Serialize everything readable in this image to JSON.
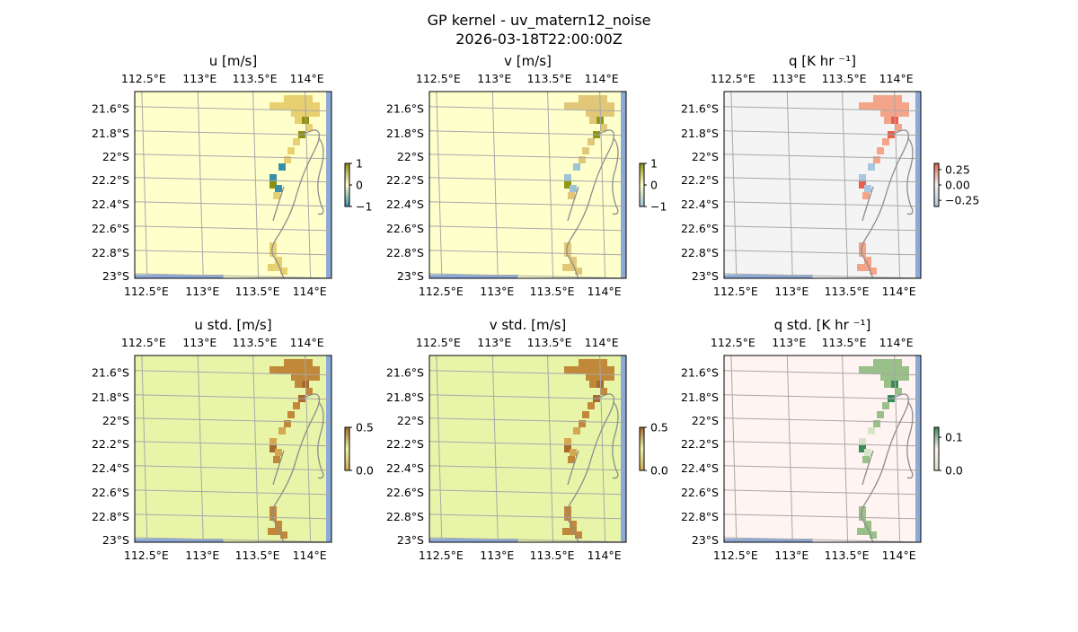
{
  "figure": {
    "title_line1": "GP kernel - uv_matern12_noise",
    "title_line2": "2026-03-18T22:00:00Z"
  },
  "chart_data": [
    {
      "type": "heatmap",
      "title": "u [m/s]",
      "lon_ticks": [
        "112.5°E",
        "113°E",
        "113.5°E",
        "114°E"
      ],
      "lat_ticks": [
        "21.6°S",
        "21.8°S",
        "22°S",
        "22.2°S",
        "22.4°S",
        "22.6°S",
        "22.8°S",
        "23°S"
      ],
      "colorbar": {
        "range": [
          -1,
          1
        ],
        "ticks": [
          "1",
          "0",
          "−1"
        ]
      },
      "background": "#ffffcc",
      "colors": {
        "low": "#3a8fa8",
        "high": "#8f8f10",
        "mid": "#e8d070"
      }
    },
    {
      "type": "heatmap",
      "title": "v [m/s]",
      "lon_ticks": [
        "112.5°E",
        "113°E",
        "113.5°E",
        "114°E"
      ],
      "lat_ticks": [
        "21.6°S",
        "21.8°S",
        "22°S",
        "22.2°S",
        "22.4°S",
        "22.6°S",
        "22.8°S",
        "23°S"
      ],
      "colorbar": {
        "range": [
          -1,
          1
        ],
        "ticks": [
          "1",
          "0",
          "−1"
        ]
      },
      "background": "#ffffcc",
      "colors": {
        "low": "#9cc4d4",
        "high": "#8f9810",
        "mid": "#e0c878"
      }
    },
    {
      "type": "heatmap",
      "title": "q [K hr ⁻¹]",
      "lon_ticks": [
        "112.5°E",
        "113°E",
        "113.5°E",
        "114°E"
      ],
      "lat_ticks": [
        "21.6°S",
        "21.8°S",
        "22°S",
        "22.2°S",
        "22.4°S",
        "22.6°S",
        "22.8°S",
        "23°S"
      ],
      "colorbar": {
        "range": [
          -0.35,
          0.35
        ],
        "ticks": [
          "0.25",
          "0.00",
          "−0.25"
        ]
      },
      "background": "#f4f4f4",
      "colors": {
        "low": "#a8c8e0",
        "high": "#e8604a",
        "mid": "#f4a488"
      }
    },
    {
      "type": "heatmap",
      "title": "u std. [m/s]",
      "lon_ticks": [
        "112.5°E",
        "113°E",
        "113.5°E",
        "114°E"
      ],
      "lat_ticks": [
        "21.6°S",
        "21.8°S",
        "22°S",
        "22.2°S",
        "22.4°S",
        "22.6°S",
        "22.8°S",
        "23°S"
      ],
      "colorbar": {
        "range": [
          0,
          0.5
        ],
        "ticks": [
          "0.5",
          "0.0"
        ]
      },
      "background": "#e8f5a8",
      "colors": {
        "low": "#d4a850",
        "high": "#a86a2a",
        "mid": "#c08838"
      }
    },
    {
      "type": "heatmap",
      "title": "v std. [m/s]",
      "lon_ticks": [
        "112.5°E",
        "113°E",
        "113.5°E",
        "114°E"
      ],
      "lat_ticks": [
        "21.6°S",
        "21.8°S",
        "22°S",
        "22.2°S",
        "22.4°S",
        "22.6°S",
        "22.8°S",
        "23°S"
      ],
      "colorbar": {
        "range": [
          0,
          0.5
        ],
        "ticks": [
          "0.5",
          "0.0"
        ]
      },
      "background": "#e8f5a8",
      "colors": {
        "low": "#d4a850",
        "high": "#a86a2a",
        "mid": "#c08838"
      }
    },
    {
      "type": "heatmap",
      "title": "q std. [K hr ⁻¹]",
      "lon_ticks": [
        "112.5°E",
        "113°E",
        "113.5°E",
        "114°E"
      ],
      "lat_ticks": [
        "21.6°S",
        "21.8°S",
        "22°S",
        "22.2°S",
        "22.4°S",
        "22.6°S",
        "22.8°S",
        "23°S"
      ],
      "colorbar": {
        "range": [
          0,
          0.13
        ],
        "ticks": [
          "0.1",
          "0.0"
        ]
      },
      "background": "#fff4f2",
      "colors": {
        "low": "#d8e4c8",
        "high": "#3a8a5a",
        "mid": "#98c088"
      }
    }
  ]
}
